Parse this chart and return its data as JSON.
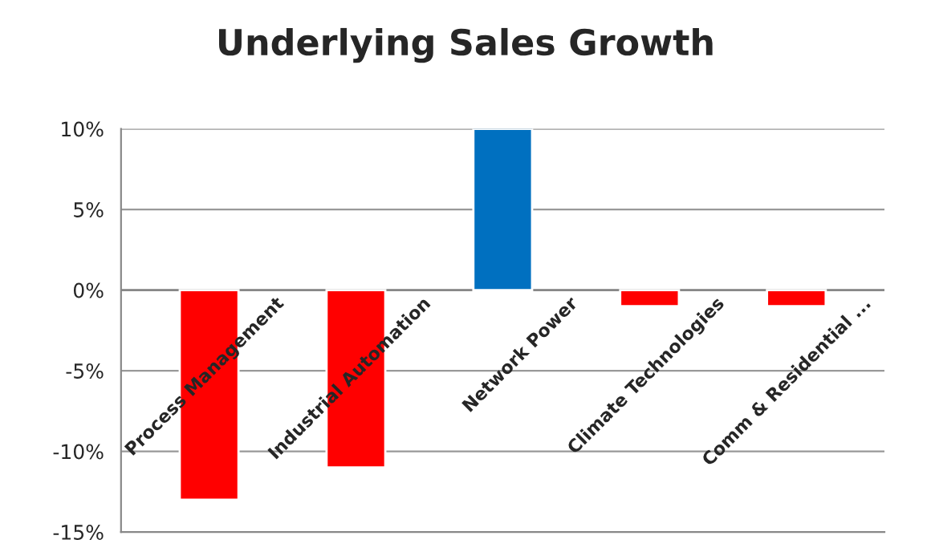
{
  "chart_data": {
    "type": "bar",
    "title": "Underlying Sales Growth",
    "categories": [
      "Process Management",
      "Industrial Automation",
      "Network Power",
      "Climate Technologies",
      "Comm & Residential ..."
    ],
    "values": [
      -13,
      -11,
      10,
      -1,
      -1
    ],
    "colors": [
      "#ff0000",
      "#ff0000",
      "#0070c0",
      "#ff0000",
      "#ff0000"
    ],
    "ylim": [
      -15,
      10
    ],
    "yticks": [
      {
        "value": -15,
        "label": "-15%"
      },
      {
        "value": -10,
        "label": "-10%"
      },
      {
        "value": -5,
        "label": "-5%"
      },
      {
        "value": 0,
        "label": "0%"
      },
      {
        "value": 5,
        "label": "5%"
      },
      {
        "value": 10,
        "label": "10%"
      }
    ],
    "grid": "y"
  }
}
